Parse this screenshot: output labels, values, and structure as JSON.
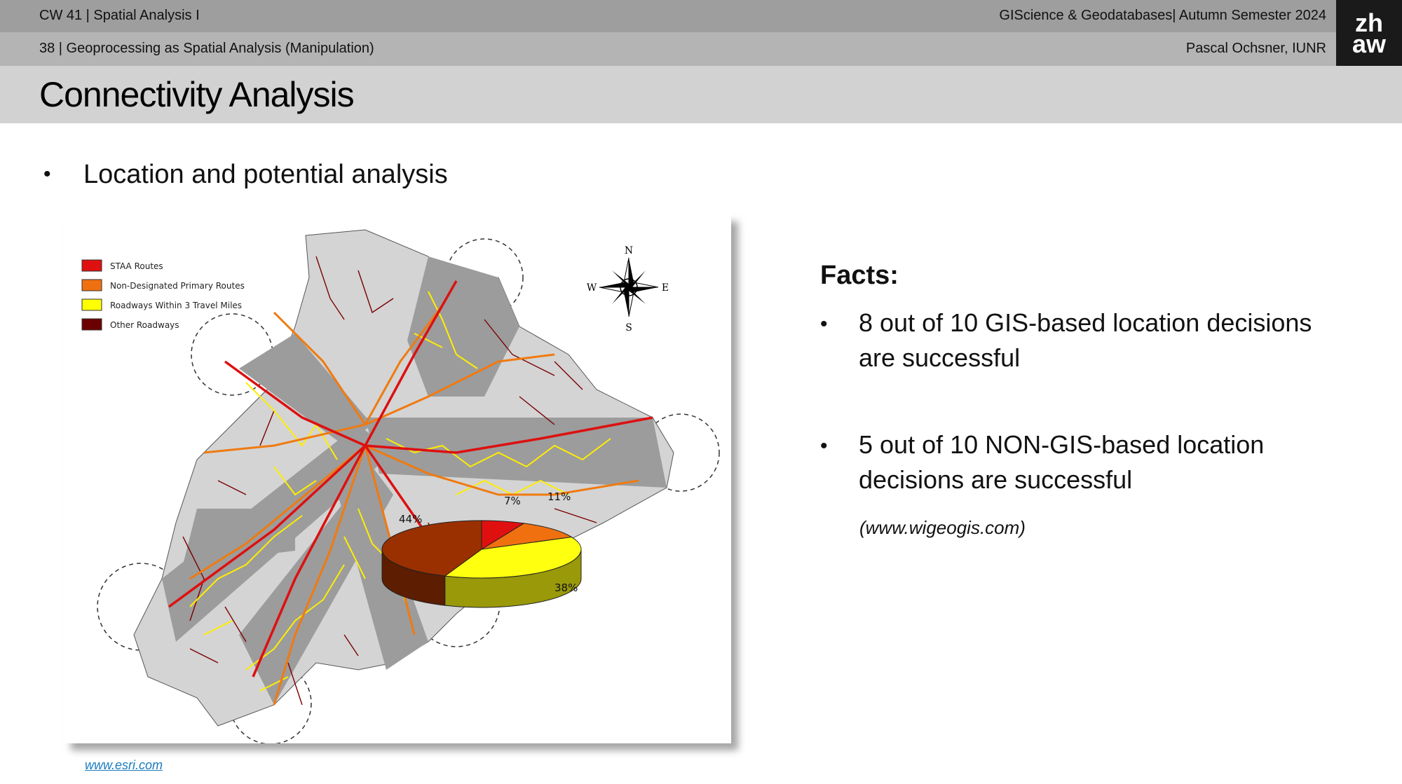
{
  "header": {
    "course": "CW 41 | Spatial Analysis I",
    "lecture": "GIScience & Geodatabases| Autumn Semester 2024",
    "slide": "38 | Geoprocessing as Spatial Analysis (Manipulation)",
    "author": "Pascal Ochsner, IUNR",
    "logo_top": "zh",
    "logo_bottom": "aw"
  },
  "title": "Connectivity Analysis",
  "bullet_main": "Location and potential analysis",
  "map": {
    "legend": [
      {
        "color": "#e01010",
        "label": "STAA Routes"
      },
      {
        "color": "#f07010",
        "label": "Non-Designated Primary Routes"
      },
      {
        "color": "#ffff00",
        "label": "Roadways Within 3 Travel Miles"
      },
      {
        "color": "#6b0000",
        "label": "Other Roadways"
      }
    ],
    "compass": {
      "n": "N",
      "s": "S",
      "e": "E",
      "w": "W"
    },
    "pie": {
      "labels": [
        "7%",
        "11%",
        "38%",
        "44%"
      ],
      "values": [
        7,
        11,
        38,
        44
      ],
      "colors": [
        "#e01010",
        "#f07010",
        "#ffff10",
        "#9a3000"
      ]
    }
  },
  "source_link": "www.esri.com",
  "facts": {
    "title": "Facts:",
    "items": [
      [
        "8 out of 10 GIS-based location decisions",
        "are successful"
      ],
      [
        "5 out of 10 NON-GIS-based location",
        "decisions are successful"
      ]
    ],
    "source": "(www.wigeogis.com)"
  }
}
